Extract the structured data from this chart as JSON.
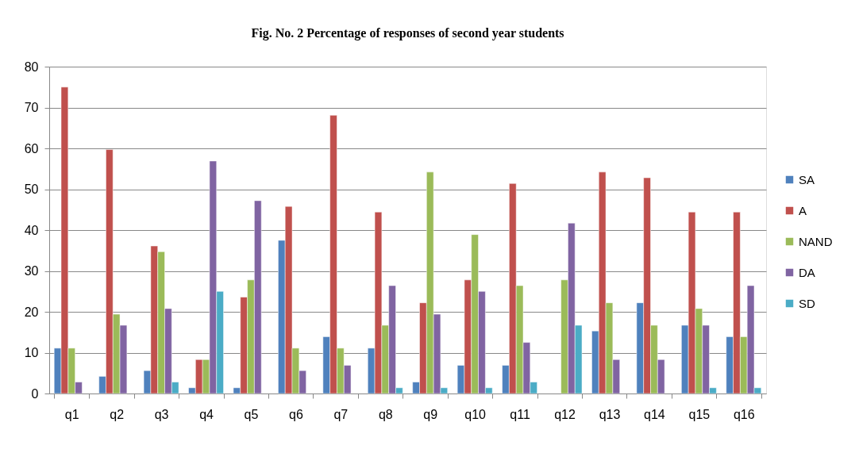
{
  "chart_data": {
    "type": "bar",
    "title": "Fig. No. 2 Percentage of responses of second year students",
    "categories": [
      "q1",
      "q2",
      "q3",
      "q4",
      "q5",
      "q6",
      "q7",
      "q8",
      "q9",
      "q10",
      "q11",
      "q12",
      "q13",
      "q14",
      "q15",
      "q16"
    ],
    "series": [
      {
        "name": "SA",
        "color": "#4f81bd",
        "values": [
          11.1,
          4.2,
          5.6,
          1.4,
          1.4,
          37.5,
          13.9,
          11.1,
          2.8,
          6.9,
          6.9,
          null,
          15.3,
          22.2,
          16.7,
          13.9
        ]
      },
      {
        "name": "A",
        "color": "#c0504d",
        "values": [
          75,
          59.7,
          36.1,
          8.3,
          23.6,
          45.8,
          68.1,
          44.4,
          22.2,
          27.8,
          51.4,
          null,
          54.2,
          52.8,
          44.4,
          44.4
        ]
      },
      {
        "name": "NAND",
        "color": "#9bbb59",
        "values": [
          11.1,
          19.4,
          34.7,
          8.3,
          27.8,
          11.1,
          11.1,
          16.7,
          54.2,
          38.9,
          26.4,
          27.8,
          22.2,
          16.7,
          20.8,
          13.9
        ]
      },
      {
        "name": "DA",
        "color": "#8064a2",
        "values": [
          2.8,
          16.7,
          20.8,
          56.9,
          47.2,
          5.6,
          6.9,
          26.4,
          19.4,
          25,
          12.5,
          41.7,
          8.3,
          8.3,
          16.7,
          26.4
        ]
      },
      {
        "name": "SD",
        "color": "#4bacc6",
        "values": [
          null,
          null,
          2.8,
          25,
          null,
          null,
          null,
          1.4,
          1.4,
          1.4,
          2.8,
          16.7,
          null,
          null,
          1.4,
          1.4
        ]
      }
    ],
    "ylim": [
      0,
      80
    ],
    "yticks": [
      0,
      10,
      20,
      30,
      40,
      50,
      60,
      70,
      80
    ],
    "grid": "y",
    "legend": "right"
  }
}
